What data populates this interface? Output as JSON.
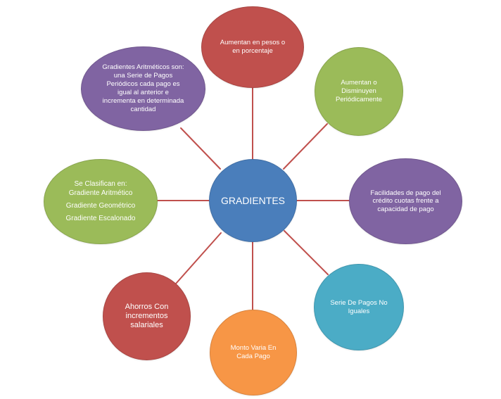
{
  "colors": {
    "center": "#4a7ebb",
    "red": "#c0504d",
    "green": "#9bbb59",
    "purple": "#8064a2",
    "teal": "#4bacc6",
    "orange": "#f79646",
    "connector": "#c0504d"
  },
  "diagram": {
    "center": {
      "label": "GRADIENTES"
    },
    "nodes": {
      "top": {
        "lines": [
          "Aumentan en pesos o",
          "en porcentaje"
        ]
      },
      "upright": {
        "lines": [
          "Aumentan o",
          "Disminuyen",
          "Periódicamente"
        ]
      },
      "right": {
        "lines": [
          "Facilidades de pago del",
          "crédito cuotas frente a",
          "capacidad de pago"
        ]
      },
      "downright": {
        "lines": [
          "Serie De Pagos No",
          "Iguales"
        ]
      },
      "bottom": {
        "lines": [
          "Monto Varia En",
          "Cada Pago"
        ]
      },
      "downleft": {
        "lines": [
          "Ahorros  Con",
          "incrementos",
          "salariales"
        ]
      },
      "left": {
        "lines": [
          "Se Clasifican en:",
          "Gradiente Aritmético",
          "Gradiente Geométrico",
          "Gradiente Escalonado"
        ]
      },
      "upleft": {
        "lines": [
          "Gradientes Aritméticos son:",
          "una Serie de Pagos",
          "Periódicos cada pago es",
          "igual al anterior e",
          "incrementa en determinada",
          "cantidad"
        ]
      }
    }
  }
}
